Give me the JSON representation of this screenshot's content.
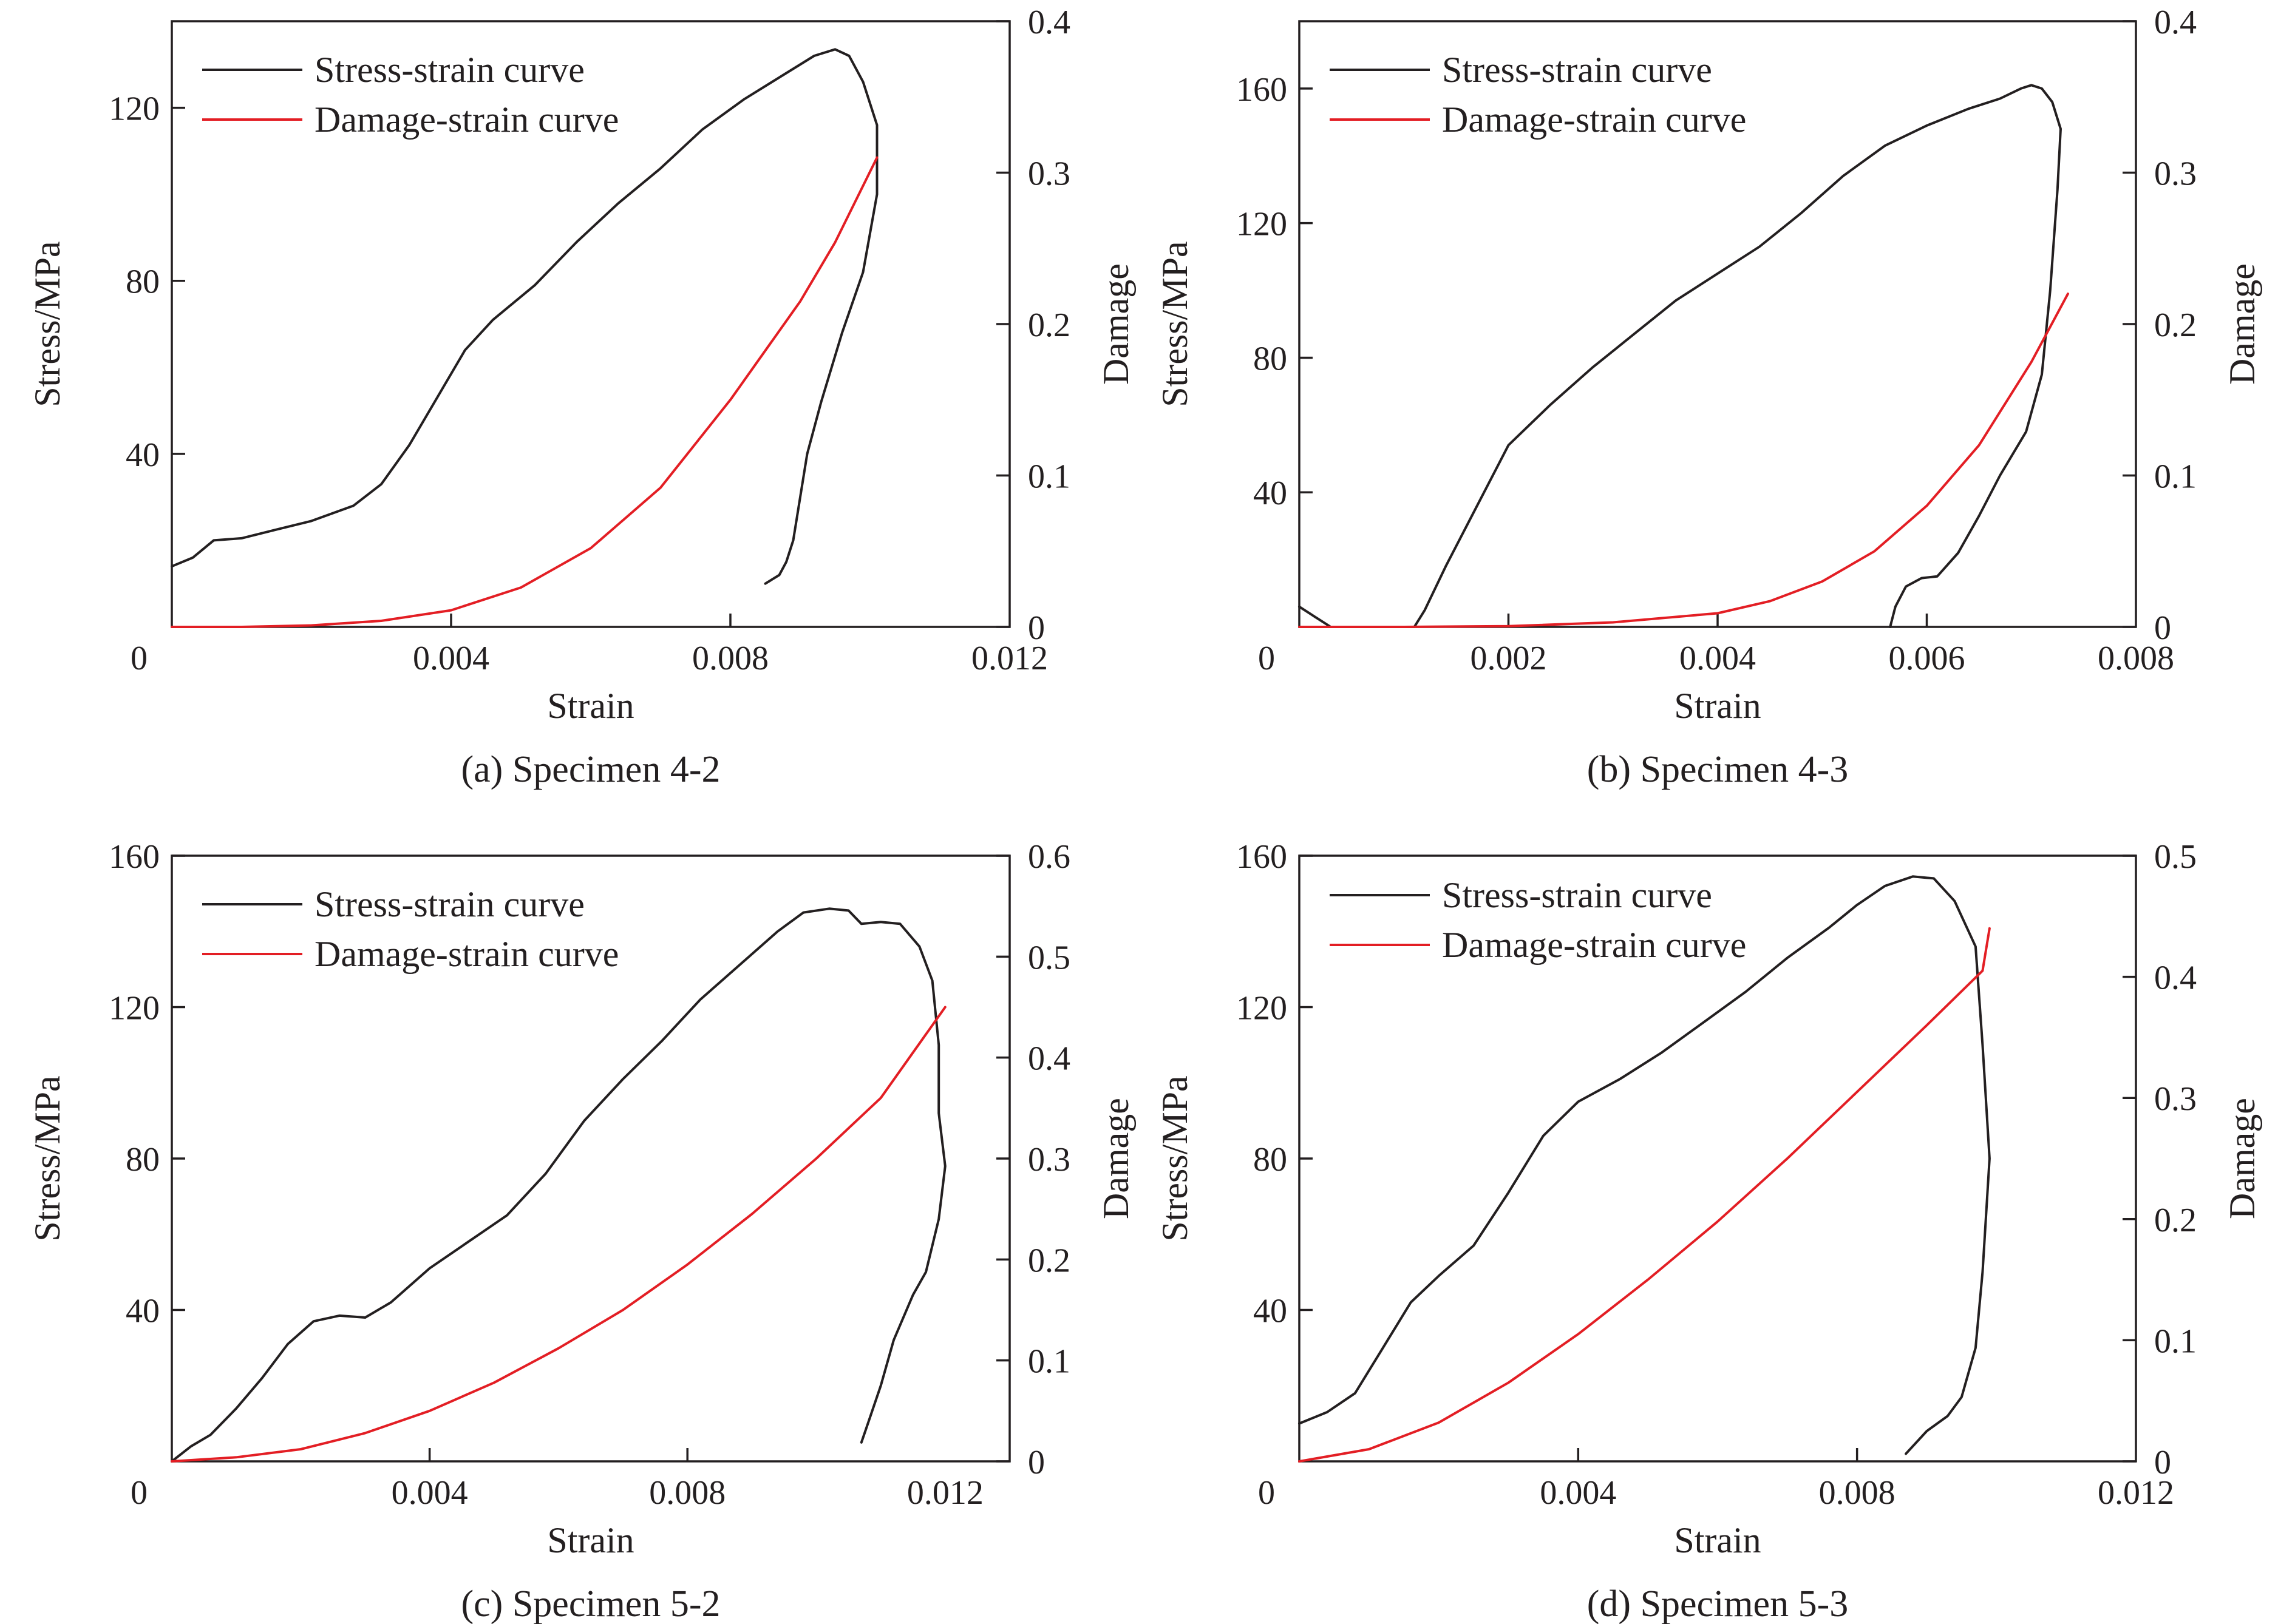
{
  "chart_data": [
    {
      "type": "line",
      "caption": "(a) Specimen 4-2",
      "xlabel": "Strain",
      "ylabel": "Stress/MPa",
      "y2label": "Damage",
      "xlim": [
        0,
        0.012
      ],
      "ylim": [
        0,
        140
      ],
      "y2lim": [
        0,
        0.4
      ],
      "xticks": [
        "0",
        "0.004",
        "0.008",
        "0.012"
      ],
      "xtick_values": [
        0,
        0.004,
        0.008,
        0.012
      ],
      "yticks": [
        "40",
        "80",
        "120"
      ],
      "ytick_values": [
        40,
        80,
        120
      ],
      "y2ticks": [
        "0",
        "0.1",
        "0.2",
        "0.3",
        "0.4"
      ],
      "y2tick_values": [
        0,
        0.1,
        0.2,
        0.3,
        0.4
      ],
      "legend": [
        "Stress-strain curve",
        "Damage-strain curve"
      ],
      "legend_position": "top-left",
      "grid": false,
      "series": [
        {
          "name": "Stress-strain curve",
          "axis": "left",
          "color": "#231f20",
          "points": [
            [
              0,
              14
            ],
            [
              0.0003,
              16
            ],
            [
              0.0006,
              20
            ],
            [
              0.001,
              20.5
            ],
            [
              0.0015,
              22.5
            ],
            [
              0.002,
              24.5
            ],
            [
              0.0026,
              28
            ],
            [
              0.003,
              33
            ],
            [
              0.0034,
              42
            ],
            [
              0.0038,
              53
            ],
            [
              0.0042,
              64
            ],
            [
              0.0046,
              71
            ],
            [
              0.0052,
              79
            ],
            [
              0.0058,
              89
            ],
            [
              0.0064,
              98
            ],
            [
              0.007,
              106
            ],
            [
              0.0076,
              115
            ],
            [
              0.0082,
              122
            ],
            [
              0.0088,
              128
            ],
            [
              0.0092,
              132
            ],
            [
              0.0095,
              133.5
            ],
            [
              0.0097,
              132
            ],
            [
              0.0099,
              126
            ],
            [
              0.0101,
              116
            ],
            [
              0.0101,
              100
            ],
            [
              0.0099,
              82
            ],
            [
              0.0096,
              68
            ],
            [
              0.0093,
              52
            ],
            [
              0.0091,
              40
            ],
            [
              0.009,
              30
            ],
            [
              0.0089,
              20
            ],
            [
              0.0088,
              15
            ],
            [
              0.0087,
              12
            ],
            [
              0.0085,
              10
            ]
          ]
        },
        {
          "name": "Damage-strain curve",
          "axis": "right",
          "color": "#e31e24",
          "points": [
            [
              0,
              0
            ],
            [
              0.001,
              0
            ],
            [
              0.002,
              0.001
            ],
            [
              0.003,
              0.004
            ],
            [
              0.004,
              0.011
            ],
            [
              0.005,
              0.026
            ],
            [
              0.006,
              0.052
            ],
            [
              0.007,
              0.092
            ],
            [
              0.008,
              0.15
            ],
            [
              0.009,
              0.215
            ],
            [
              0.0095,
              0.254
            ],
            [
              0.0101,
              0.31
            ]
          ]
        }
      ]
    },
    {
      "type": "line",
      "caption": "(b) Specimen 4-3",
      "xlabel": "Strain",
      "ylabel": "Stress/MPa",
      "y2label": "Damage",
      "xlim": [
        0,
        0.008
      ],
      "ylim": [
        0,
        180
      ],
      "y2lim": [
        0,
        0.4
      ],
      "xticks": [
        "0",
        "0.002",
        "0.004",
        "0.006",
        "0.008"
      ],
      "xtick_values": [
        0,
        0.002,
        0.004,
        0.006,
        0.008
      ],
      "yticks": [
        "40",
        "80",
        "120",
        "160"
      ],
      "ytick_values": [
        40,
        80,
        120,
        160
      ],
      "y2ticks": [
        "0",
        "0.1",
        "0.2",
        "0.3",
        "0.4"
      ],
      "y2tick_values": [
        0,
        0.1,
        0.2,
        0.3,
        0.4
      ],
      "legend": [
        "Stress-strain curve",
        "Damage-strain curve"
      ],
      "legend_position": "top-left",
      "grid": false,
      "series": [
        {
          "name": "Stress-strain curve",
          "axis": "left",
          "color": "#231f20",
          "points": [
            [
              0,
              6
            ],
            [
              0.00015,
              3
            ],
            [
              0.0003,
              0
            ],
            [
              0.0011,
              0
            ],
            [
              0.0012,
              5
            ],
            [
              0.0014,
              18
            ],
            [
              0.0016,
              30
            ],
            [
              0.0018,
              42
            ],
            [
              0.002,
              54
            ],
            [
              0.0024,
              66
            ],
            [
              0.0028,
              77
            ],
            [
              0.0032,
              87
            ],
            [
              0.0036,
              97
            ],
            [
              0.004,
              105
            ],
            [
              0.0044,
              113
            ],
            [
              0.0048,
              123
            ],
            [
              0.0052,
              134
            ],
            [
              0.0056,
              143
            ],
            [
              0.006,
              149
            ],
            [
              0.0064,
              154
            ],
            [
              0.0067,
              157
            ],
            [
              0.0069,
              160
            ],
            [
              0.007,
              161
            ],
            [
              0.0071,
              160
            ],
            [
              0.0072,
              156
            ],
            [
              0.00728,
              148
            ],
            [
              0.00725,
              130
            ],
            [
              0.00718,
              100
            ],
            [
              0.0071,
              75
            ],
            [
              0.00695,
              58
            ],
            [
              0.0067,
              45
            ],
            [
              0.0065,
              33
            ],
            [
              0.0063,
              22
            ],
            [
              0.0061,
              15
            ],
            [
              0.00595,
              14.5
            ],
            [
              0.0058,
              12
            ],
            [
              0.0057,
              6
            ],
            [
              0.00565,
              0
            ]
          ]
        },
        {
          "name": "Damage-strain curve",
          "axis": "right",
          "color": "#e31e24",
          "points": [
            [
              0,
              0
            ],
            [
              0.001,
              0
            ],
            [
              0.002,
              0.0005
            ],
            [
              0.003,
              0.003
            ],
            [
              0.004,
              0.009
            ],
            [
              0.0045,
              0.017
            ],
            [
              0.005,
              0.03
            ],
            [
              0.0055,
              0.05
            ],
            [
              0.006,
              0.08
            ],
            [
              0.0065,
              0.12
            ],
            [
              0.007,
              0.175
            ],
            [
              0.00735,
              0.22
            ]
          ]
        }
      ]
    },
    {
      "type": "line",
      "caption": "(c) Specimen 5-2",
      "xlabel": "Strain",
      "ylabel": "Stress/MPa",
      "y2label": "Damage",
      "xlim": [
        0,
        0.013
      ],
      "ylim": [
        0,
        160
      ],
      "y2lim": [
        0,
        0.6
      ],
      "xticks": [
        "0",
        "0.004",
        "0.008",
        "0.012"
      ],
      "xtick_values": [
        0,
        0.004,
        0.008,
        0.012
      ],
      "yticks": [
        "40",
        "80",
        "120",
        "160"
      ],
      "ytick_values": [
        40,
        80,
        120,
        160
      ],
      "y2ticks": [
        "0",
        "0.1",
        "0.2",
        "0.3",
        "0.4",
        "0.5",
        "0.6"
      ],
      "y2tick_values": [
        0,
        0.1,
        0.2,
        0.3,
        0.4,
        0.5,
        0.6
      ],
      "legend": [
        "Stress-strain curve",
        "Damage-strain curve"
      ],
      "legend_position": "top-left",
      "grid": false,
      "series": [
        {
          "name": "Stress-strain curve",
          "axis": "left",
          "color": "#231f20",
          "points": [
            [
              0,
              0
            ],
            [
              0.0003,
              4
            ],
            [
              0.0006,
              7
            ],
            [
              0.001,
              14
            ],
            [
              0.0014,
              22
            ],
            [
              0.0018,
              31
            ],
            [
              0.0022,
              37
            ],
            [
              0.0026,
              38.5
            ],
            [
              0.003,
              38
            ],
            [
              0.0034,
              42
            ],
            [
              0.004,
              51
            ],
            [
              0.0046,
              58
            ],
            [
              0.0052,
              65
            ],
            [
              0.0058,
              76
            ],
            [
              0.0064,
              90
            ],
            [
              0.007,
              101
            ],
            [
              0.0076,
              111
            ],
            [
              0.0082,
              122
            ],
            [
              0.0088,
              131
            ],
            [
              0.0094,
              140
            ],
            [
              0.0098,
              145
            ],
            [
              0.0102,
              146
            ],
            [
              0.0105,
              145.5
            ],
            [
              0.0107,
              142
            ],
            [
              0.011,
              142.5
            ],
            [
              0.0113,
              142
            ],
            [
              0.0116,
              136
            ],
            [
              0.0118,
              127
            ],
            [
              0.0119,
              110
            ],
            [
              0.0119,
              92
            ],
            [
              0.012,
              78
            ],
            [
              0.0119,
              64
            ],
            [
              0.0117,
              50
            ],
            [
              0.0115,
              44
            ],
            [
              0.0112,
              32
            ],
            [
              0.011,
              20
            ],
            [
              0.0108,
              10
            ],
            [
              0.0107,
              5
            ]
          ]
        },
        {
          "name": "Damage-strain curve",
          "axis": "right",
          "color": "#e31e24",
          "points": [
            [
              0,
              0
            ],
            [
              0.001,
              0.004
            ],
            [
              0.002,
              0.012
            ],
            [
              0.003,
              0.028
            ],
            [
              0.004,
              0.05
            ],
            [
              0.005,
              0.078
            ],
            [
              0.006,
              0.112
            ],
            [
              0.007,
              0.15
            ],
            [
              0.008,
              0.195
            ],
            [
              0.009,
              0.245
            ],
            [
              0.01,
              0.3
            ],
            [
              0.011,
              0.36
            ],
            [
              0.012,
              0.45
            ]
          ]
        }
      ]
    },
    {
      "type": "line",
      "caption": "(d) Specimen 5-3",
      "xlabel": "Strain",
      "ylabel": "Stress/MPa",
      "y2label": "Damage",
      "xlim": [
        0,
        0.012
      ],
      "ylim": [
        0,
        160
      ],
      "y2lim": [
        0,
        0.5
      ],
      "xticks": [
        "0",
        "0.004",
        "0.008",
        "0.012"
      ],
      "xtick_values": [
        0,
        0.004,
        0.008,
        0.012
      ],
      "yticks": [
        "40",
        "80",
        "120",
        "160"
      ],
      "ytick_values": [
        40,
        80,
        120,
        160
      ],
      "y2ticks": [
        "0",
        "0.1",
        "0.2",
        "0.3",
        "0.4",
        "0.5"
      ],
      "y2tick_values": [
        0,
        0.1,
        0.2,
        0.3,
        0.4,
        0.5
      ],
      "legend": [
        "Stress-strain curve",
        "Damage-strain curve"
      ],
      "legend_position": "top-left",
      "grid": false,
      "series": [
        {
          "name": "Stress-strain curve",
          "axis": "left",
          "color": "#231f20",
          "points": [
            [
              0,
              10
            ],
            [
              0.0004,
              13
            ],
            [
              0.0008,
              18
            ],
            [
              0.0012,
              30
            ],
            [
              0.0016,
              42
            ],
            [
              0.002,
              49
            ],
            [
              0.0025,
              57
            ],
            [
              0.003,
              71
            ],
            [
              0.0035,
              86
            ],
            [
              0.004,
              95
            ],
            [
              0.0046,
              101
            ],
            [
              0.0052,
              108
            ],
            [
              0.0058,
              116
            ],
            [
              0.0064,
              124
            ],
            [
              0.007,
              133
            ],
            [
              0.0076,
              141
            ],
            [
              0.008,
              147
            ],
            [
              0.0084,
              152
            ],
            [
              0.0088,
              154.5
            ],
            [
              0.0091,
              154
            ],
            [
              0.0094,
              148
            ],
            [
              0.0097,
              136
            ],
            [
              0.0098,
              110
            ],
            [
              0.0099,
              80
            ],
            [
              0.0098,
              50
            ],
            [
              0.0097,
              30
            ],
            [
              0.0095,
              17
            ],
            [
              0.0093,
              12
            ],
            [
              0.009,
              8
            ],
            [
              0.0087,
              2
            ]
          ]
        },
        {
          "name": "Damage-strain curve",
          "axis": "right",
          "color": "#e31e24",
          "points": [
            [
              0,
              0
            ],
            [
              0.001,
              0.01
            ],
            [
              0.002,
              0.032
            ],
            [
              0.003,
              0.065
            ],
            [
              0.004,
              0.105
            ],
            [
              0.005,
              0.15
            ],
            [
              0.006,
              0.198
            ],
            [
              0.007,
              0.25
            ],
            [
              0.008,
              0.305
            ],
            [
              0.009,
              0.36
            ],
            [
              0.0098,
              0.405
            ],
            [
              0.0099,
              0.44
            ]
          ]
        }
      ]
    }
  ]
}
